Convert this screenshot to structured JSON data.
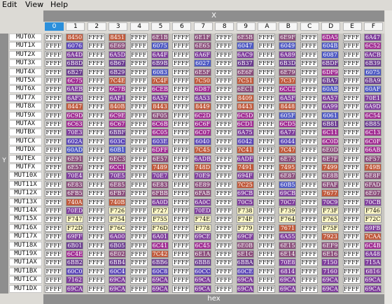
{
  "menubar": {
    "items": [
      "Edit",
      "View",
      "Help"
    ]
  },
  "x_axis": {
    "label": "X"
  },
  "y_axis": {
    "label": "Y"
  },
  "hex_bar": {
    "label": "hex"
  },
  "columns": [
    "0",
    "1",
    "2",
    "3",
    "4",
    "5",
    "6",
    "7",
    "8",
    "9",
    "A",
    "B",
    "C",
    "D",
    "E",
    "F"
  ],
  "selected_column": "0",
  "rows": [
    {
      "label": "MUT0X",
      "cells": [
        "FFFF",
        "8450",
        "FFFF",
        "8451",
        "FFFF",
        "6E1B",
        "FFFF",
        "6E1F",
        "FFFF",
        "6E5B",
        "FFFF",
        "6E9F",
        "FFFF",
        "6DA5",
        "FFFF",
        "6A47"
      ]
    },
    {
      "label": "MUT1X",
      "cells": [
        "FFFF",
        "6076",
        "FFFF",
        "6E69",
        "FFFF",
        "6075",
        "FFFF",
        "6E65",
        "FFFF",
        "6047",
        "FFFF",
        "6049",
        "FFFF",
        "604B",
        "FFFF",
        "6C52"
      ]
    },
    {
      "label": "MUT2X",
      "cells": [
        "FFFF",
        "6A4D",
        "FFFF",
        "6A5D",
        "FFFF",
        "6A4F",
        "FFFF",
        "6A6F",
        "FFFF",
        "6AC9",
        "FFFF",
        "6A89",
        "FFFF",
        "6087",
        "FFFF",
        "6ACB"
      ]
    },
    {
      "label": "MUT3X",
      "cells": [
        "FFFF",
        "6B8D",
        "FFFF",
        "6B67",
        "FFFF",
        "6B9B",
        "FFFF",
        "6027",
        "FFFF",
        "6B37",
        "FFFF",
        "6B3D",
        "FFFF",
        "6BDF",
        "FFFF",
        "6B39"
      ]
    },
    {
      "label": "MUT4X",
      "cells": [
        "FFFF",
        "6B27",
        "FFFF",
        "6B29",
        "FFFF",
        "6083",
        "FFFF",
        "6E5F",
        "FFFF",
        "6E6F",
        "FFFF",
        "6E79",
        "FFFF",
        "6DF9",
        "FFFF",
        "6075"
      ]
    },
    {
      "label": "MUT5X",
      "cells": [
        "FFFF",
        "6C75",
        "FFFF",
        "7C4E",
        "FFFF",
        "7C4F",
        "FFFF",
        "7C50",
        "FFFF",
        "7C51",
        "FFFF",
        "7C37",
        "FFFF",
        "6BA7",
        "FFFF",
        "6BA9"
      ]
    },
    {
      "label": "MUT6X",
      "cells": [
        "FFFF",
        "6AEB",
        "FFFF",
        "6C7B",
        "FFFF",
        "6CEB",
        "FFFF",
        "6D87",
        "FFFF",
        "6EC1",
        "FFFF",
        "6CCD",
        "FFFF",
        "60AB",
        "FFFF",
        "60AF"
      ]
    },
    {
      "label": "MUT7X",
      "cells": [
        "FFFF",
        "6AF3",
        "FFFF",
        "6AF1",
        "FFFF",
        "6A57",
        "FFFF",
        "6A53",
        "FFFF",
        "8409",
        "FFFF",
        "6A5F",
        "FFFF",
        "6A57",
        "FFFF",
        "70E1"
      ]
    },
    {
      "label": "MUT8X",
      "cells": [
        "FFFF",
        "8447",
        "FFFF",
        "840B",
        "FFFF",
        "8443",
        "FFFF",
        "8449",
        "FFFF",
        "8443",
        "FFFF",
        "8448",
        "FFFF",
        "6A99",
        "FFFF",
        "6A9D"
      ]
    },
    {
      "label": "MUT9X",
      "cells": [
        "FFFF",
        "6C9D",
        "FFFF",
        "6C9E",
        "FFFF",
        "6F05",
        "FFFF",
        "6C2D",
        "FFFF",
        "6C5D",
        "FFFF",
        "605F",
        "FFFF",
        "6061",
        "FFFF",
        "6C54"
      ]
    },
    {
      "label": "MUTAX",
      "cells": [
        "FFFF",
        "6C63",
        "FFFF",
        "6C67",
        "FFFF",
        "6C6B",
        "FFFF",
        "6C6F",
        "FFFF",
        "6CD1",
        "FFFF",
        "6CD5",
        "FFFF",
        "6B81",
        "FFFF",
        "6B85"
      ]
    },
    {
      "label": "MUTBX",
      "cells": [
        "FFFF",
        "70E3",
        "FFFF",
        "6BBF",
        "FFFF",
        "6C05",
        "FFFF",
        "6C07",
        "FFFF",
        "6A75",
        "FFFF",
        "6A77",
        "FFFF",
        "6C11",
        "FFFF",
        "6C13"
      ]
    },
    {
      "label": "MUTCX",
      "cells": [
        "FFFF",
        "602A",
        "FFFF",
        "603C",
        "FFFF",
        "603E",
        "FFFF",
        "6040",
        "FFFF",
        "6042",
        "FFFF",
        "6044",
        "FFFF",
        "6C0D",
        "FFFF",
        "6C0F"
      ]
    },
    {
      "label": "MUTDX",
      "cells": [
        "FFFF",
        "60AD",
        "FFFF",
        "60B1",
        "FFFF",
        "6DFF",
        "FFFF",
        "7C45",
        "FFFF",
        "7C41",
        "FFFF",
        "7C47",
        "FFFF",
        "6E0D",
        "FFFF",
        "66AB"
      ]
    },
    {
      "label": "MUTEX",
      "cells": [
        "FFFF",
        "6E91",
        "FFFF",
        "6EC3",
        "FFFF",
        "6E57",
        "FFFF",
        "6ADB",
        "FFFF",
        "6ADF",
        "FFFF",
        "6E73",
        "FFFF",
        "6E7F",
        "FFFF",
        "6F57"
      ]
    },
    {
      "label": "MUTFX",
      "cells": [
        "FFFF",
        "6E57",
        "FFFF",
        "6CC1",
        "FFFF",
        "7489",
        "FFFF",
        "748D",
        "FFFF",
        "7491",
        "FFFF",
        "7495",
        "FFFF",
        "7499",
        "FFFF",
        "749B"
      ]
    },
    {
      "label": "MUT10X",
      "cells": [
        "FFFF",
        "70E4",
        "FFFF",
        "70E5",
        "FFFF",
        "70E7",
        "FFFF",
        "70E9",
        "FFFF",
        "694F",
        "FFFF",
        "6E87",
        "FFFF",
        "6E8B",
        "FFFF",
        "6E8F"
      ]
    },
    {
      "label": "MUT11X",
      "cells": [
        "FFFF",
        "6E83",
        "FFFF",
        "6E85",
        "FFFF",
        "6E83",
        "FFFF",
        "6E89",
        "FFFF",
        "7C25",
        "FFFF",
        "60B5",
        "FFFF",
        "6FAF",
        "FFFF",
        "6FAD"
      ]
    },
    {
      "label": "MUT12X",
      "cells": [
        "FFFF",
        "6FB5",
        "FFFF",
        "6FB7",
        "FFFF",
        "6FBB",
        "FFFF",
        "6FAB",
        "FFFF",
        "69CB",
        "FFFF",
        "69CB",
        "FFFF",
        "7677",
        "FFFF",
        "6E07"
      ]
    },
    {
      "label": "MUT13X",
      "cells": [
        "FFFF",
        "740A",
        "FFFF",
        "740B",
        "FFFF",
        "6A0D",
        "FFFF",
        "6A0C",
        "FFFF",
        "70C5",
        "FFFF",
        "70C7",
        "FFFF",
        "70C9",
        "FFFF",
        "70CB"
      ]
    },
    {
      "label": "MUT14X",
      "cells": [
        "FFFF",
        "70ED",
        "FFFF",
        "F726",
        "FFFF",
        "F727",
        "FFFF",
        "70ED",
        "FFFF",
        "F738",
        "FFFF",
        "F739",
        "FFFF",
        "F73F",
        "FFFF",
        "F746"
      ]
    },
    {
      "label": "MUT15X",
      "cells": [
        "FFFF",
        "F747",
        "FFFF",
        "F754",
        "FFFF",
        "F755",
        "FFFF",
        "F74E",
        "FFFF",
        "F74F",
        "FFFF",
        "F764",
        "FFFF",
        "F765",
        "FFFF",
        "F72C"
      ]
    },
    {
      "label": "MUT16X",
      "cells": [
        "FFFF",
        "F72D",
        "FFFF",
        "F76C",
        "FFFF",
        "F76D",
        "FFFF",
        "F778",
        "FFFF",
        "F779",
        "FFFF",
        "7671",
        "FFFF",
        "F75F",
        "FFFF",
        "69FB"
      ]
    },
    {
      "label": "MUT17X",
      "cells": [
        "FFFF",
        "69FF",
        "FFFF",
        "6A00",
        "FFFF",
        "6A01",
        "FFFF",
        "69CE",
        "FFFF",
        "69CF",
        "FFFF",
        "6A55",
        "FFFF",
        "7923",
        "FFFF",
        "7CAA"
      ]
    },
    {
      "label": "MUT18X",
      "cells": [
        "FFFF",
        "6B01",
        "FFFF",
        "6B05",
        "FFFF",
        "6C41",
        "FFFF",
        "6C45",
        "FFFF",
        "6E0B",
        "FFFF",
        "6E15",
        "FFFF",
        "6EF9",
        "FFFF",
        "6C4B"
      ]
    },
    {
      "label": "MUT19X",
      "cells": [
        "FFFF",
        "6C4E",
        "FFFF",
        "6E02",
        "FFFF",
        "7C42",
        "FFFF",
        "6E1A",
        "FFFF",
        "6E1C",
        "FFFF",
        "6E14",
        "FFFF",
        "6E16",
        "FFFF",
        "6A48"
      ]
    },
    {
      "label": "MUT1AX",
      "cells": [
        "FFFF",
        "6BB2",
        "FFFF",
        "6BB4",
        "FFFF",
        "6BB6",
        "FFFF",
        "6BB8",
        "FFFF",
        "6BBA",
        "FFFF",
        "70E8",
        "FFFF",
        "7150",
        "FFFF",
        "715A"
      ]
    },
    {
      "label": "MUT1BX",
      "cells": [
        "FFFF",
        "60C0",
        "FFFF",
        "60C4",
        "FFFF",
        "60C8",
        "FFFF",
        "60CC",
        "FFFF",
        "60CE",
        "FFFF",
        "6814",
        "FFFF",
        "7160",
        "FFFF",
        "6816"
      ]
    },
    {
      "label": "MUT1CX",
      "cells": [
        "FFFF",
        "7162",
        "FFFF",
        "69CA",
        "FFFF",
        "69CA",
        "FFFF",
        "69CA",
        "FFFF",
        "69CA",
        "FFFF",
        "69CA",
        "FFFF",
        "69CA",
        "FFFF",
        "69CA"
      ]
    },
    {
      "label": "MUT1DX",
      "cells": [
        "FFFF",
        "69CA",
        "FFFF",
        "69CA",
        "FFFF",
        "69CA",
        "FFFF",
        "69CA",
        "FFFF",
        "69CA",
        "FFFF",
        "69CA",
        "FFFF",
        "69CA",
        "FFFF",
        "69CA"
      ]
    }
  ]
}
